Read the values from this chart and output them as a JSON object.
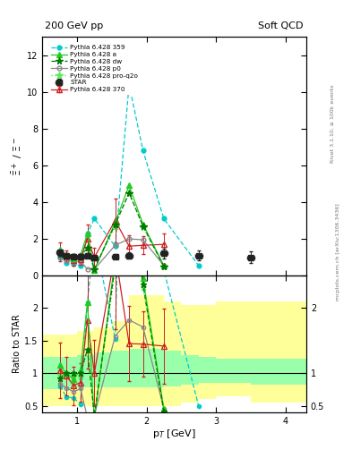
{
  "title_left": "200 GeV pp",
  "title_right": "Soft QCD",
  "ylabel_main": "$\\bar{\\Xi}^+$ / $\\Xi^-$",
  "ylabel_ratio": "Ratio to STAR",
  "xlabel": "p$_{T}$ [GeV]",
  "right_label_top": "Rivet 3.1.10, ≥ 100k events",
  "right_label_bot": "mcplots.cern.ch [arXiv:1306.3436]",
  "ylim_main": [
    0,
    13
  ],
  "ylim_ratio": [
    0.4,
    2.5
  ],
  "xlim": [
    0.5,
    4.3
  ],
  "star_x": [
    0.75,
    0.85,
    0.95,
    1.05,
    1.15,
    1.25,
    1.55,
    1.75,
    2.25,
    2.75,
    3.5
  ],
  "star_y": [
    1.25,
    1.1,
    1.05,
    1.05,
    1.1,
    1.0,
    1.05,
    1.1,
    1.2,
    1.1,
    1.0
  ],
  "star_ex": [
    0.05,
    0.05,
    0.05,
    0.05,
    0.05,
    0.05,
    0.05,
    0.05,
    0.05,
    0.05,
    0.05
  ],
  "star_ey": [
    0.18,
    0.12,
    0.1,
    0.1,
    0.1,
    0.1,
    0.1,
    0.15,
    0.25,
    0.25,
    0.3
  ],
  "p359_x": [
    0.75,
    0.85,
    0.95,
    1.05,
    1.15,
    1.25,
    1.55,
    1.75,
    1.95,
    2.25,
    2.75
  ],
  "p359_y": [
    1.0,
    0.7,
    0.65,
    0.55,
    2.3,
    3.1,
    1.6,
    10.4,
    6.8,
    3.1,
    0.55
  ],
  "p370_x": [
    0.75,
    0.85,
    0.95,
    1.05,
    1.15,
    1.25,
    1.55,
    1.75,
    1.95,
    2.25
  ],
  "p370_y": [
    1.3,
    1.05,
    0.85,
    0.9,
    2.0,
    1.0,
    3.0,
    1.6,
    1.65,
    1.7
  ],
  "p370_ey": [
    0.5,
    0.3,
    0.3,
    0.3,
    0.8,
    0.5,
    1.2,
    0.6,
    0.5,
    0.6
  ],
  "pa_x": [
    0.75,
    0.85,
    0.95,
    1.05,
    1.15,
    1.25,
    1.55,
    1.75,
    1.95,
    2.25
  ],
  "pa_y": [
    1.4,
    1.1,
    0.95,
    1.1,
    2.3,
    0.3,
    2.9,
    4.9,
    2.8,
    0.55
  ],
  "pdw_x": [
    0.75,
    0.85,
    0.95,
    1.05,
    1.15,
    1.25,
    1.55,
    1.75,
    1.95,
    2.25
  ],
  "pdw_y": [
    1.15,
    1.1,
    1.05,
    1.05,
    1.5,
    0.35,
    2.8,
    4.5,
    2.7,
    0.5
  ],
  "pp0_x": [
    0.75,
    0.85,
    0.95,
    1.05,
    1.15,
    1.25,
    1.55,
    1.75,
    1.95,
    2.25
  ],
  "pp0_y": [
    1.05,
    0.85,
    0.75,
    0.8,
    0.35,
    0.35,
    1.65,
    2.0,
    1.95,
    0.55
  ],
  "pproq2o_x": [
    0.75,
    0.85,
    0.95,
    1.05,
    1.15,
    1.25,
    1.55,
    1.75,
    1.95,
    2.25
  ],
  "pproq2o_y": [
    1.2,
    1.1,
    1.0,
    1.0,
    1.5,
    0.35,
    2.7,
    4.5,
    2.65,
    0.5
  ],
  "band_outer_edges": [
    0.5,
    1.0,
    1.25,
    1.5,
    1.75,
    2.0,
    2.25,
    2.5,
    2.75,
    3.0,
    3.5,
    4.3
  ],
  "band_outer_ylo": [
    0.5,
    0.5,
    0.5,
    0.5,
    0.5,
    0.5,
    0.5,
    0.55,
    0.6,
    0.65,
    0.55,
    0.55
  ],
  "band_outer_yhi": [
    1.6,
    1.65,
    1.7,
    1.8,
    2.2,
    2.2,
    2.1,
    2.05,
    2.05,
    2.1,
    2.1,
    2.2
  ],
  "band_inner_edges": [
    0.5,
    1.0,
    1.25,
    1.5,
    1.75,
    2.0,
    2.25,
    2.5,
    2.75,
    3.0,
    3.5,
    4.3
  ],
  "band_inner_ylo": [
    0.75,
    0.78,
    0.78,
    0.78,
    0.78,
    0.78,
    0.8,
    0.82,
    0.85,
    0.85,
    0.82,
    0.82
  ],
  "band_inner_yhi": [
    1.25,
    1.28,
    1.32,
    1.35,
    1.38,
    1.38,
    1.35,
    1.28,
    1.25,
    1.22,
    1.22,
    1.22
  ],
  "color_star": "#222222",
  "color_359": "#00cccc",
  "color_370": "#cc2222",
  "color_a": "#22cc22",
  "color_dw": "#007700",
  "color_p0": "#888888",
  "color_proq2o": "#55ee55",
  "color_band_outer": "#ffff99",
  "color_band_inner": "#99ffaa"
}
